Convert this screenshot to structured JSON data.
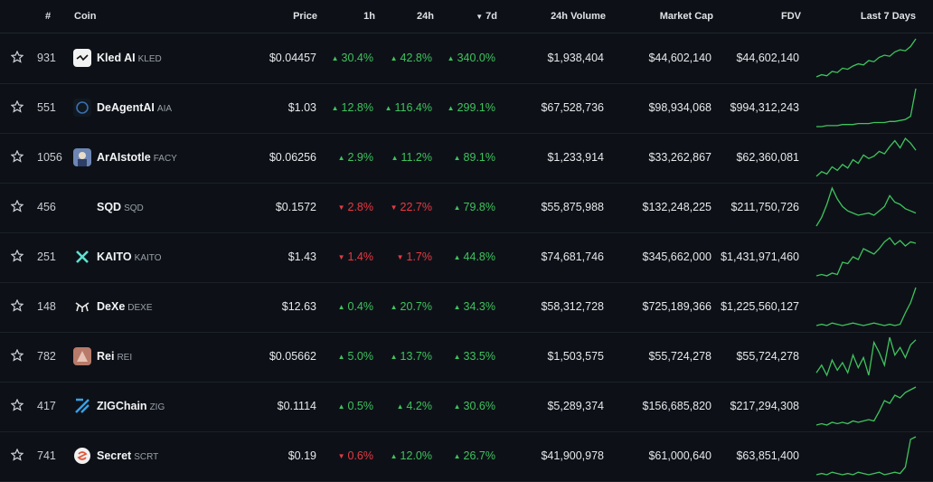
{
  "headers": {
    "rank": "#",
    "coin": "Coin",
    "price": "Price",
    "h1": "1h",
    "h24": "24h",
    "d7": "7d",
    "sort_icon": "▼",
    "volume": "24h Volume",
    "mcap": "Market Cap",
    "fdv": "FDV",
    "spark": "Last 7 Days"
  },
  "colors": {
    "up": "#3fc35e",
    "down": "#ea3943",
    "bg": "#0d1117"
  },
  "rows": [
    {
      "rank": "931",
      "name": "Kled AI",
      "symbol": "KLED",
      "price": "$0.04457",
      "h1": "30.4%",
      "h1_dir": "up",
      "h24": "42.8%",
      "h24_dir": "up",
      "d7": "340.0%",
      "d7_dir": "up",
      "volume": "$1,938,404",
      "mcap": "$44,602,140",
      "fdv": "$44,602,140",
      "logo": "kled-logo",
      "spark": [
        10,
        12,
        11,
        15,
        14,
        18,
        17,
        20,
        22,
        21,
        25,
        24,
        28,
        30,
        29,
        33,
        35,
        34,
        38,
        45
      ]
    },
    {
      "rank": "551",
      "name": "DeAgentAI",
      "symbol": "AIA",
      "price": "$1.03",
      "h1": "12.8%",
      "h1_dir": "up",
      "h24": "116.4%",
      "h24_dir": "up",
      "d7": "299.1%",
      "d7_dir": "up",
      "volume": "$67,528,736",
      "mcap": "$98,934,068",
      "fdv": "$994,312,243",
      "logo": "deagentai-logo",
      "spark": [
        8,
        8,
        9,
        9,
        9,
        10,
        10,
        10,
        11,
        11,
        11,
        12,
        12,
        12,
        13,
        13,
        14,
        15,
        18,
        45
      ]
    },
    {
      "rank": "1056",
      "name": "ArAIstotle",
      "symbol": "FACY",
      "price": "$0.06256",
      "h1": "2.9%",
      "h1_dir": "up",
      "h24": "11.2%",
      "h24_dir": "up",
      "d7": "89.1%",
      "d7_dir": "up",
      "volume": "$1,233,914",
      "mcap": "$33,262,867",
      "fdv": "$62,360,081",
      "logo": "araistotle-logo",
      "spark": [
        10,
        14,
        12,
        18,
        15,
        20,
        17,
        24,
        21,
        28,
        25,
        27,
        31,
        29,
        35,
        40,
        34,
        42,
        38,
        32
      ]
    },
    {
      "rank": "456",
      "name": "SQD",
      "symbol": "SQD",
      "price": "$0.1572",
      "h1": "2.8%",
      "h1_dir": "down",
      "h24": "22.7%",
      "h24_dir": "down",
      "d7": "79.8%",
      "d7_dir": "up",
      "volume": "$55,875,988",
      "mcap": "$132,248,225",
      "fdv": "$211,750,726",
      "logo": "sqd-logo",
      "spark": [
        10,
        18,
        30,
        45,
        35,
        28,
        24,
        22,
        20,
        21,
        22,
        20,
        24,
        28,
        38,
        32,
        30,
        26,
        24,
        22
      ]
    },
    {
      "rank": "251",
      "name": "KAITO",
      "symbol": "KAITO",
      "price": "$1.43",
      "h1": "1.4%",
      "h1_dir": "down",
      "h24": "1.7%",
      "h24_dir": "down",
      "d7": "44.8%",
      "d7_dir": "up",
      "volume": "$74,681,746",
      "mcap": "$345,662,000",
      "fdv": "$1,431,971,460",
      "logo": "kaito-logo",
      "spark": [
        10,
        11,
        10,
        12,
        11,
        20,
        19,
        24,
        22,
        30,
        28,
        26,
        30,
        35,
        38,
        33,
        36,
        32,
        35,
        34
      ]
    },
    {
      "rank": "148",
      "name": "DeXe",
      "symbol": "DEXE",
      "price": "$12.63",
      "h1": "0.4%",
      "h1_dir": "up",
      "h24": "20.7%",
      "h24_dir": "up",
      "d7": "34.3%",
      "d7_dir": "up",
      "volume": "$58,312,728",
      "mcap": "$725,189,366",
      "fdv": "$1,225,560,127",
      "logo": "dexe-logo",
      "spark": [
        12,
        13,
        12,
        14,
        13,
        12,
        13,
        14,
        13,
        12,
        13,
        14,
        13,
        12,
        13,
        12,
        13,
        22,
        30,
        42
      ]
    },
    {
      "rank": "782",
      "name": "Rei",
      "symbol": "REI",
      "price": "$0.05662",
      "h1": "5.0%",
      "h1_dir": "up",
      "h24": "13.7%",
      "h24_dir": "up",
      "d7": "33.5%",
      "d7_dir": "up",
      "volume": "$1,503,575",
      "mcap": "$55,724,278",
      "fdv": "$55,724,278",
      "logo": "rei-logo",
      "spark": [
        14,
        20,
        12,
        24,
        16,
        22,
        14,
        28,
        18,
        26,
        12,
        38,
        30,
        20,
        42,
        28,
        34,
        26,
        36,
        40
      ]
    },
    {
      "rank": "417",
      "name": "ZIGChain",
      "symbol": "ZIG",
      "price": "$0.1114",
      "h1": "0.5%",
      "h1_dir": "up",
      "h24": "4.2%",
      "h24_dir": "up",
      "d7": "30.6%",
      "d7_dir": "up",
      "volume": "$5,289,374",
      "mcap": "$156,685,820",
      "fdv": "$217,294,308",
      "logo": "zigchain-logo",
      "spark": [
        10,
        11,
        10,
        12,
        11,
        12,
        11,
        13,
        12,
        13,
        14,
        13,
        20,
        28,
        26,
        32,
        30,
        34,
        36,
        38
      ]
    },
    {
      "rank": "741",
      "name": "Secret",
      "symbol": "SCRT",
      "price": "$0.19",
      "h1": "0.6%",
      "h1_dir": "down",
      "h24": "12.0%",
      "h24_dir": "up",
      "d7": "26.7%",
      "d7_dir": "up",
      "volume": "$41,900,978",
      "mcap": "$61,000,640",
      "fdv": "$63,851,400",
      "logo": "secret-logo",
      "spark": [
        12,
        13,
        12,
        14,
        13,
        12,
        13,
        12,
        14,
        13,
        12,
        13,
        14,
        12,
        13,
        14,
        13,
        18,
        40,
        42
      ]
    }
  ]
}
